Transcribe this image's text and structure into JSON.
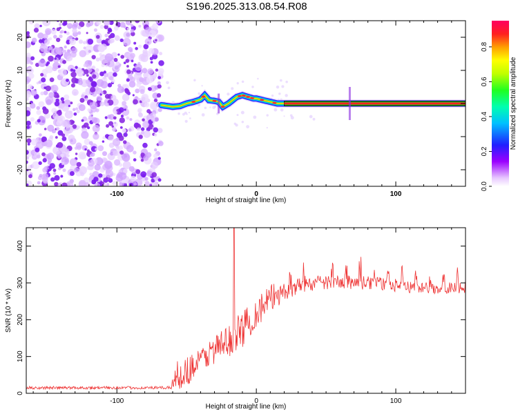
{
  "title": "S196.2025.313.08.54.R08",
  "chart_data": [
    {
      "type": "heatmap",
      "xlabel": "Height of straight line (km)",
      "ylabel": "Frequency (Hz)",
      "xlim": [
        -165,
        150
      ],
      "ylim": [
        -25,
        25
      ],
      "xticks": [
        -100,
        0,
        100
      ],
      "yticks": [
        20,
        10,
        0,
        -10,
        -20
      ],
      "colorbar": {
        "label": "Normalized spectral amplitude",
        "range": [
          0.0,
          0.95
        ],
        "ticks": [
          0.0,
          0.2,
          0.4,
          0.6,
          0.8
        ]
      },
      "noise_region_x": [
        -165,
        -68
      ],
      "signal_track": {
        "x": [
          -68,
          -60,
          -55,
          -50,
          -45,
          -40,
          -37,
          -34,
          -30,
          -27,
          -24,
          -20,
          -17,
          -14,
          -10,
          -6,
          -2,
          0,
          5,
          10,
          15,
          20,
          40,
          60,
          80,
          100,
          120,
          150
        ],
        "freq": [
          -0.5,
          -1,
          -0.8,
          0,
          0.5,
          1.2,
          2.5,
          1,
          0.8,
          0.5,
          -1,
          0,
          1,
          2,
          2.5,
          2,
          1.5,
          1.5,
          1,
          0.5,
          0,
          0,
          0,
          0,
          0,
          0,
          0,
          0
        ]
      }
    },
    {
      "type": "line",
      "xlabel": "Height of straight line (km)",
      "ylabel": "SNR (10 * v/v)",
      "xlim": [
        -165,
        150
      ],
      "ylim": [
        0,
        450
      ],
      "xticks": [
        -100,
        0,
        100
      ],
      "yticks": [
        0,
        100,
        200,
        300,
        400
      ],
      "color": "#ee3333",
      "envelope": {
        "x": [
          -165,
          -70,
          -62,
          -58,
          -50,
          -40,
          -30,
          -20,
          -10,
          0,
          10,
          20,
          30,
          50,
          70,
          90,
          110,
          130,
          150
        ],
        "base": [
          15,
          15,
          15,
          45,
          60,
          90,
          120,
          140,
          175,
          220,
          255,
          285,
          305,
          315,
          315,
          310,
          300,
          295,
          300
        ],
        "amp": [
          8,
          8,
          8,
          80,
          80,
          70,
          80,
          90,
          100,
          90,
          80,
          70,
          70,
          70,
          65,
          60,
          55,
          50,
          55
        ]
      },
      "peak": {
        "x": -16,
        "value": 450
      }
    }
  ]
}
